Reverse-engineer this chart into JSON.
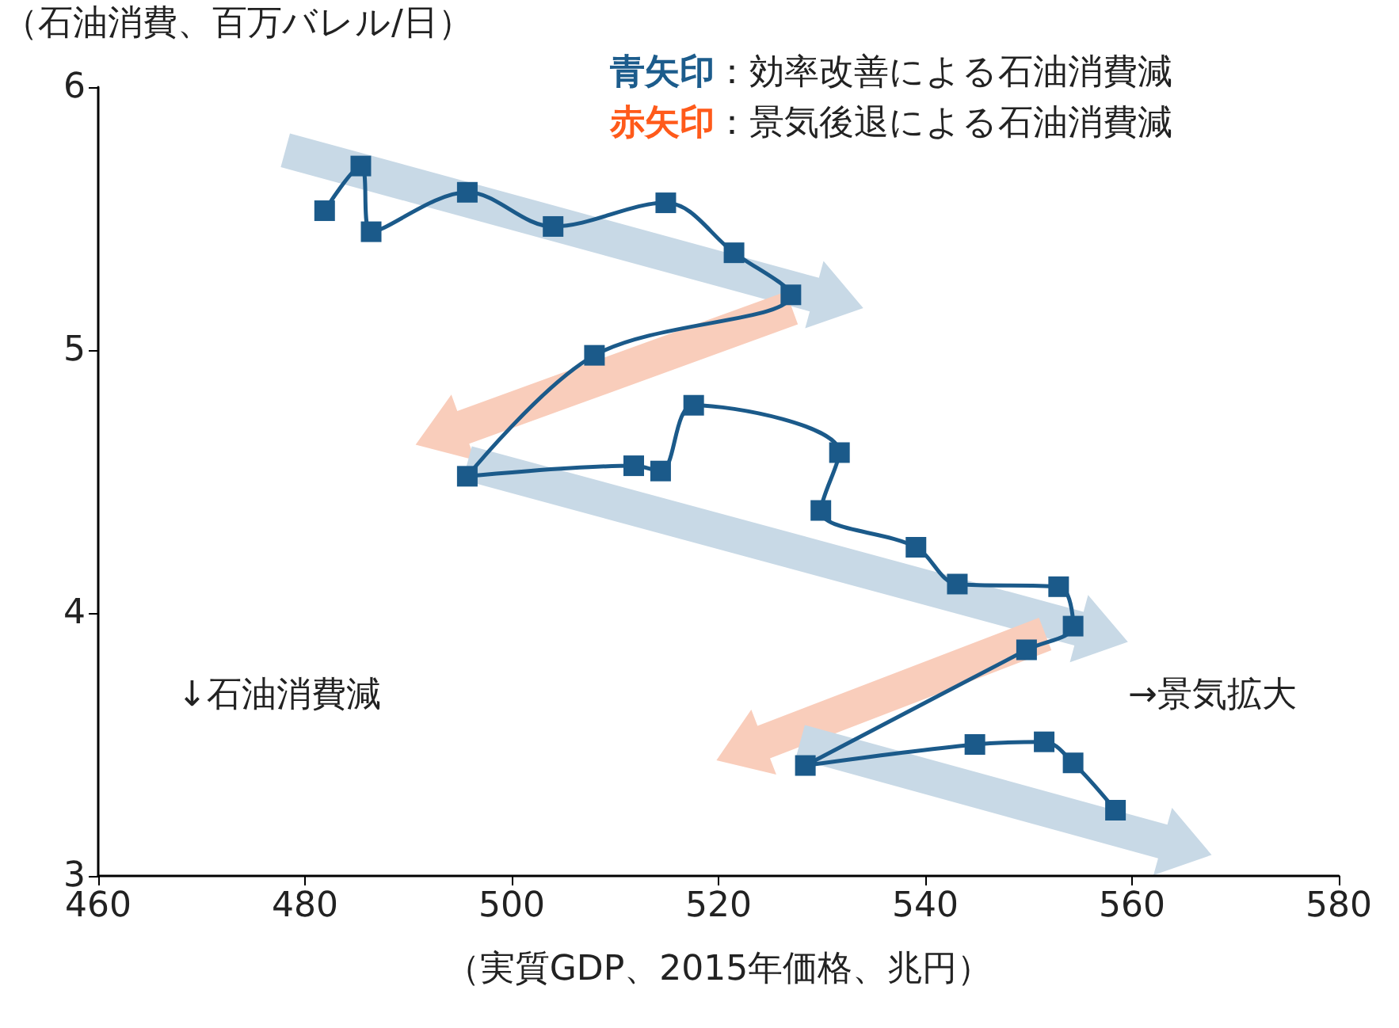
{
  "chart_data": {
    "type": "line",
    "xlabel": "（実質GDP、2015年価格、兆円）",
    "ylabel": "（石油消費、百万バレル/日）",
    "annotations": [
      "青矢印：効率改善による石油消費減",
      "赤矢印：景気後退による石油消費減",
      "↓石油消費減",
      "→景気拡大"
    ],
    "series": [
      {
        "color": "#1b5a8a",
        "x": [
          481.9,
          485.4,
          486.4,
          495.7,
          504.0,
          514.9,
          521.5,
          527.0,
          508.0,
          495.7,
          511.8,
          514.4,
          517.6,
          531.7,
          529.9,
          539.1,
          543.1,
          552.9,
          554.3,
          549.8,
          528.4,
          544.8,
          551.5,
          554.3,
          558.4
        ],
        "values": [
          5.53,
          5.7,
          5.45,
          5.6,
          5.47,
          5.56,
          5.37,
          5.21,
          4.98,
          4.52,
          4.56,
          4.54,
          4.79,
          4.61,
          4.39,
          4.25,
          4.11,
          4.1,
          3.95,
          3.86,
          3.42,
          3.5,
          3.51,
          3.43,
          3.25
        ]
      }
    ],
    "xlim": [
      460,
      580
    ],
    "xticks": [
      460,
      480,
      500,
      520,
      540,
      560,
      580
    ],
    "ylim": [
      3,
      6
    ],
    "yticks": [
      3,
      4,
      5,
      6
    ],
    "grid": false,
    "marker": "square",
    "line_style": "solid"
  }
}
